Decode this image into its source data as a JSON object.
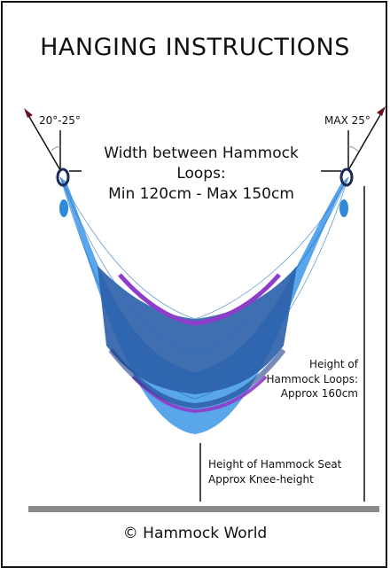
{
  "title": "HANGING INSTRUCTIONS",
  "angle_left": "20°-25°",
  "angle_right": "MAX 25°",
  "width": {
    "line1": "Width between Hammock Loops:",
    "line2": "Min 120cm - Max 150cm"
  },
  "loops_height": {
    "line1": "Height of",
    "line2": "Hammock Loops:",
    "line3": "Approx 160cm"
  },
  "seat_height": {
    "line1": "Height of Hammock Seat",
    "line2": "Approx Knee-height"
  },
  "copyright": "© Hammock World",
  "colors": {
    "net_blue": "#2f8fe0",
    "net_dark": "#1c3f8a",
    "edge_purple": "#8e3cc9",
    "floor": "#8a8a8a",
    "arrow": "#6b1220"
  }
}
